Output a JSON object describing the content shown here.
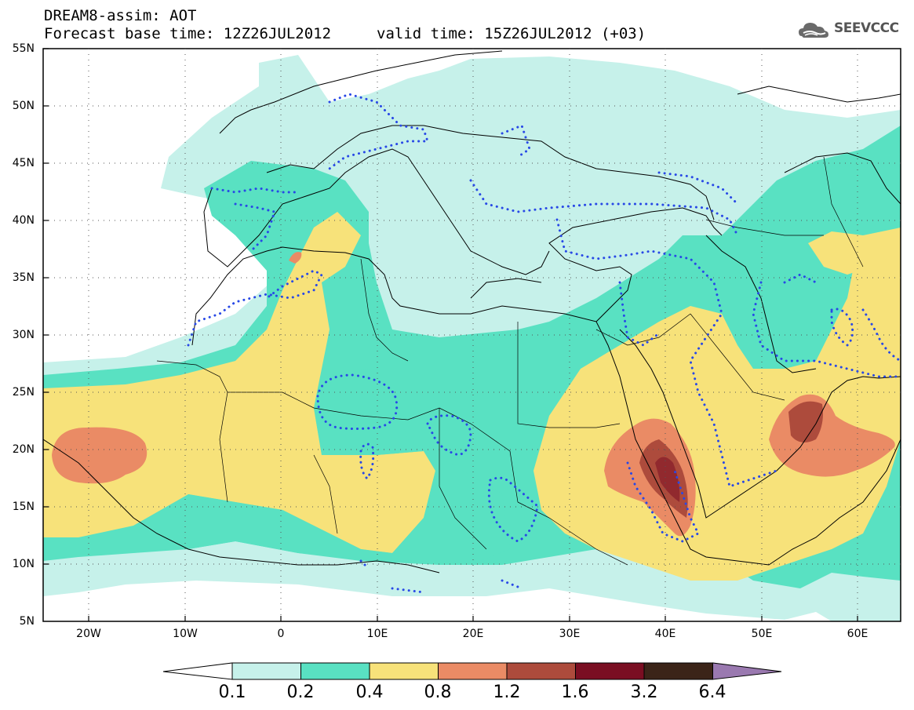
{
  "header": {
    "model_line": "DREAM8-assim: AOT",
    "base_time_line": "Forecast base time: 12Z26JUL2012",
    "valid_time_line": "valid time: 15Z26JUL2012 (+03)",
    "logo_text": "SEEVCCC"
  },
  "map": {
    "lat_labels": [
      "55N",
      "50N",
      "45N",
      "40N",
      "35N",
      "30N",
      "25N",
      "20N",
      "15N",
      "10N",
      "5N"
    ],
    "lon_labels": [
      "20W",
      "10W",
      "0",
      "10E",
      "20E",
      "30E",
      "40E",
      "50E",
      "60E"
    ],
    "colors": {
      "c01": "#c6f1ea",
      "c02": "#59e1c2",
      "c04": "#f7e27a",
      "c08": "#ea8b65",
      "c12": "#ad4b3c",
      "c16": "#7a0e22",
      "c32": "#3b2418",
      "c64": "#9a79b0",
      "dust_contour": "#2848e6",
      "coast": "#000000"
    }
  },
  "colorbar": {
    "labels": [
      "0.1",
      "0.2",
      "0.4",
      "0.8",
      "1.2",
      "1.6",
      "3.2",
      "6.4"
    ],
    "colors": [
      "#c6f1ea",
      "#59e1c2",
      "#f7e27a",
      "#ea8b65",
      "#ad4b3c",
      "#7a0e22",
      "#3b2418"
    ],
    "low_color": "#ffffff",
    "high_color": "#9a79b0"
  }
}
